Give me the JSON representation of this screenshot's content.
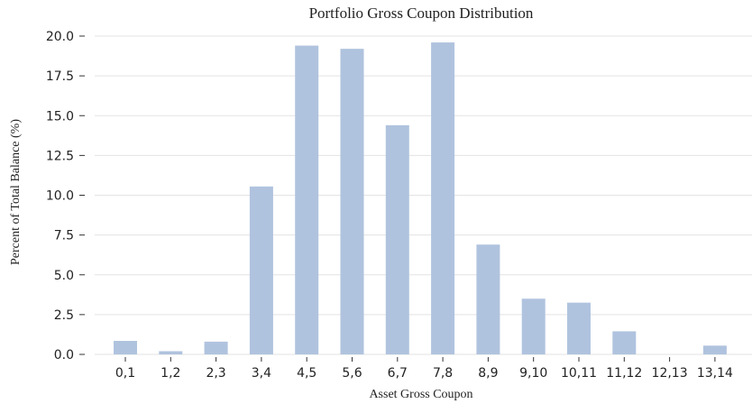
{
  "chart_data": {
    "type": "bar",
    "title": "Portfolio Gross Coupon Distribution",
    "xlabel": "Asset Gross Coupon",
    "ylabel": "Percent of Total Balance (%)",
    "categories": [
      "0,1",
      "1,2",
      "2,3",
      "3,4",
      "4,5",
      "5,6",
      "6,7",
      "7,8",
      "8,9",
      "9,10",
      "10,11",
      "11,12",
      "12,13",
      "13,14"
    ],
    "values": [
      0.85,
      0.2,
      0.8,
      10.55,
      19.4,
      19.2,
      14.4,
      19.6,
      6.9,
      3.5,
      3.25,
      1.45,
      0.0,
      0.55
    ],
    "ylim": [
      0,
      20
    ],
    "yticks": [
      "0.0",
      "2.5",
      "5.0",
      "7.5",
      "10.0",
      "12.5",
      "15.0",
      "17.5",
      "20.0"
    ],
    "grid": true,
    "bar_color": "#b0c3de"
  }
}
